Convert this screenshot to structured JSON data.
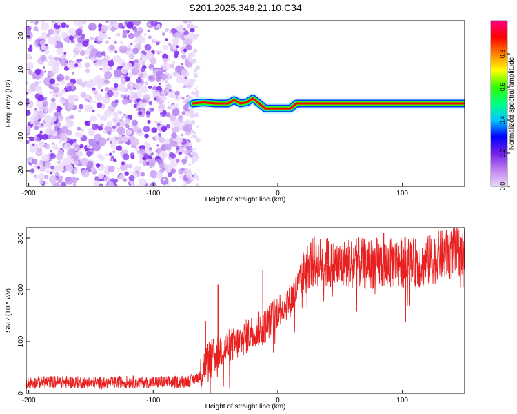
{
  "title": "S201.2025.348.21.10.C34",
  "chart_data": [
    {
      "type": "heatmap",
      "panel": "spectrogram",
      "xlabel": "Height of straight line (km)",
      "ylabel": "Frequency (Hz)",
      "xlim": [
        -202,
        150
      ],
      "ylim": [
        -24.5,
        24.5
      ],
      "xticks": [
        -200,
        -100,
        0,
        100
      ],
      "yticks": [
        -20,
        -10,
        0,
        10,
        20
      ],
      "colorbar": {
        "label": "Normalized spectral amplitude",
        "range": [
          0,
          1
        ],
        "ticks": [
          "0.0",
          "0.2",
          "0.4",
          "0.6",
          "0.8"
        ],
        "tick_values": [
          0.0,
          0.2,
          0.4,
          0.6,
          0.8
        ],
        "colors": [
          "#e8d8f8",
          "#c080f0",
          "#7020e8",
          "#0000ff",
          "#00c8ff",
          "#00ff80",
          "#30ff00",
          "#ffff00",
          "#ff8000",
          "#ff0000",
          "#ff0080"
        ]
      },
      "noise_region": {
        "x_range": [
          -202,
          -68
        ],
        "freq_range": [
          -24.5,
          24.5
        ],
        "color": "#7a22f0"
      },
      "signal_track": {
        "x": [
          -68,
          -60,
          -50,
          -40,
          -35,
          -30,
          -25,
          -20,
          -15,
          -10,
          -5,
          0,
          5,
          10,
          15,
          20,
          150
        ],
        "freq": [
          0.0,
          0.3,
          0.0,
          0.0,
          1.0,
          0.0,
          0.3,
          1.5,
          0.0,
          -1.5,
          -1.5,
          -1.5,
          -1.5,
          -1.5,
          0.0,
          0.0,
          0.0
        ]
      }
    },
    {
      "type": "line",
      "panel": "snr",
      "xlabel": "Height of straight line (km)",
      "ylabel": "SNR (10 * v/v)",
      "xlim": [
        -202,
        150
      ],
      "ylim": [
        0,
        320
      ],
      "xticks": [
        -200,
        -100,
        0,
        100
      ],
      "yticks": [
        0,
        100,
        200,
        300
      ],
      "series": [
        {
          "name": "SNR",
          "color": "#e82020",
          "x": [
            -200,
            -180,
            -160,
            -140,
            -120,
            -100,
            -80,
            -70,
            -62,
            -58,
            -55,
            -50,
            -45,
            -40,
            -35,
            -30,
            -25,
            -20,
            -15,
            -10,
            -5,
            0,
            5,
            10,
            15,
            20,
            25,
            30,
            40,
            50,
            60,
            70,
            80,
            90,
            100,
            110,
            120,
            130,
            140,
            150
          ],
          "y": [
            20,
            22,
            21,
            20,
            22,
            21,
            22,
            24,
            35,
            60,
            70,
            75,
            85,
            90,
            95,
            100,
            110,
            120,
            125,
            130,
            145,
            160,
            170,
            180,
            200,
            225,
            250,
            255,
            250,
            245,
            255,
            250,
            252,
            250,
            255,
            250,
            255,
            265,
            270,
            275
          ],
          "spikes": [
            {
              "x": -58,
              "y": 140
            },
            {
              "x": -48,
              "y": 210
            },
            {
              "x": -12,
              "y": 238
            },
            {
              "x": 20,
              "y": 230
            },
            {
              "x": 40,
              "y": 300
            },
            {
              "x": 85,
              "y": 310
            }
          ]
        }
      ]
    }
  ]
}
